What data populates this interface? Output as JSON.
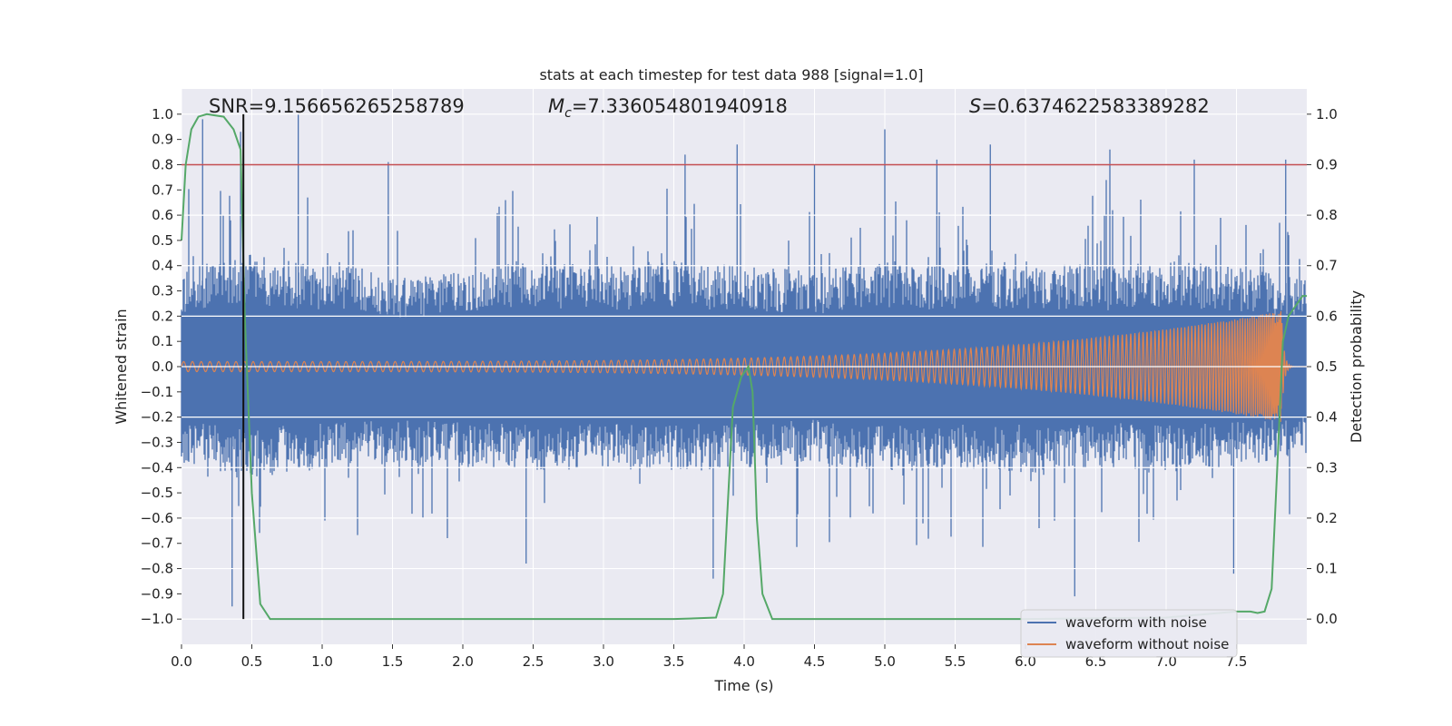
{
  "chart_data": {
    "type": "line",
    "title": "stats at each timestep for test data 988 [signal=1.0]",
    "xlabel": "Time (s)",
    "ylabel": "Whitened strain",
    "y2label": "Detection probability",
    "xlim": [
      0.0,
      8.0
    ],
    "ylim": [
      -1.1,
      1.1
    ],
    "y2lim": [
      -0.05,
      1.05
    ],
    "xticks": [
      "0.0",
      "0.5",
      "1.0",
      "1.5",
      "2.0",
      "2.5",
      "3.0",
      "3.5",
      "4.0",
      "4.5",
      "5.0",
      "5.5",
      "6.0",
      "6.5",
      "7.0",
      "7.5"
    ],
    "yticks": [
      "1.0",
      "0.9",
      "0.8",
      "0.7",
      "0.6",
      "0.5",
      "0.4",
      "0.3",
      "0.2",
      "0.1",
      "0.0",
      "−0.1",
      "−0.2",
      "−0.3",
      "−0.4",
      "−0.5",
      "−0.6",
      "−0.7",
      "−0.8",
      "−0.9",
      "−1.0"
    ],
    "y2ticks": [
      "1.0",
      "0.9",
      "0.8",
      "0.7",
      "0.6",
      "0.5",
      "0.4",
      "0.3",
      "0.2",
      "0.1",
      "0.0"
    ],
    "annotations": {
      "snr": "SNR=9.156656265258789",
      "mc_symbol": "M",
      "mc_sub": "c",
      "mc_value": "=7.336054801940918",
      "s_symbol": "S",
      "s_value": "=0.6374622583389282"
    },
    "threshold": {
      "value": 0.9,
      "axis": "right",
      "color": "#c44e52"
    },
    "marker_time": 0.44,
    "series": [
      {
        "name": "waveform with noise",
        "color": "#4c72b0",
        "axis": "left",
        "envelope_upper": [
          [
            0.0,
            0.38
          ],
          [
            0.4,
            0.45
          ],
          [
            0.8,
            0.42
          ],
          [
            1.2,
            0.4
          ],
          [
            1.6,
            0.35
          ],
          [
            2.0,
            0.38
          ],
          [
            2.5,
            0.42
          ],
          [
            3.0,
            0.4
          ],
          [
            3.5,
            0.42
          ],
          [
            4.0,
            0.4
          ],
          [
            4.5,
            0.38
          ],
          [
            5.0,
            0.42
          ],
          [
            5.5,
            0.4
          ],
          [
            6.0,
            0.42
          ],
          [
            6.5,
            0.4
          ],
          [
            7.0,
            0.42
          ],
          [
            7.5,
            0.4
          ],
          [
            8.0,
            0.35
          ]
        ],
        "envelope_lower": [
          [
            0.0,
            -0.38
          ],
          [
            0.4,
            -0.45
          ],
          [
            0.8,
            -0.42
          ],
          [
            1.2,
            -0.4
          ],
          [
            1.6,
            -0.38
          ],
          [
            2.0,
            -0.4
          ],
          [
            2.5,
            -0.42
          ],
          [
            3.0,
            -0.4
          ],
          [
            3.5,
            -0.42
          ],
          [
            4.0,
            -0.4
          ],
          [
            4.5,
            -0.38
          ],
          [
            5.0,
            -0.42
          ],
          [
            5.5,
            -0.4
          ],
          [
            6.0,
            -0.42
          ],
          [
            6.5,
            -0.4
          ],
          [
            7.0,
            -0.42
          ],
          [
            7.5,
            -0.4
          ],
          [
            8.0,
            -0.35
          ]
        ],
        "peaks": [
          [
            0.15,
            0.98
          ],
          [
            0.36,
            -0.95
          ],
          [
            0.42,
            0.93
          ],
          [
            0.83,
            1.0
          ],
          [
            1.47,
            0.81
          ],
          [
            2.45,
            -0.78
          ],
          [
            3.58,
            0.84
          ],
          [
            3.78,
            -0.84
          ],
          [
            3.95,
            0.88
          ],
          [
            4.5,
            0.8
          ],
          [
            5.0,
            0.94
          ],
          [
            5.37,
            0.82
          ],
          [
            5.75,
            0.88
          ],
          [
            6.35,
            -0.91
          ],
          [
            6.6,
            0.86
          ],
          [
            7.2,
            0.82
          ],
          [
            7.48,
            -0.82
          ],
          [
            7.85,
            0.82
          ]
        ]
      },
      {
        "name": "waveform without noise",
        "color": "#dd8452",
        "axis": "left",
        "chirp": {
          "amplitude_start": 0.02,
          "amplitude_end": 0.22,
          "merger_time": 7.82,
          "cycles": 200
        }
      },
      {
        "name": "detection probability",
        "color": "#55a868",
        "axis": "right",
        "x": [
          0.0,
          0.03,
          0.07,
          0.12,
          0.18,
          0.3,
          0.37,
          0.42,
          0.45,
          0.5,
          0.56,
          0.63,
          1.0,
          2.0,
          3.0,
          3.5,
          3.8,
          3.85,
          3.92,
          3.98,
          4.03,
          4.06,
          4.09,
          4.13,
          4.2,
          4.5,
          5.0,
          6.0,
          7.0,
          7.5,
          7.6,
          7.65,
          7.7,
          7.75,
          7.79,
          7.83,
          7.87,
          7.92,
          7.97,
          8.0
        ],
        "y": [
          0.75,
          0.9,
          0.97,
          0.995,
          1.0,
          0.995,
          0.97,
          0.93,
          0.6,
          0.25,
          0.03,
          0.0,
          0.0,
          0.0,
          0.0,
          0.0,
          0.003,
          0.05,
          0.42,
          0.48,
          0.5,
          0.45,
          0.2,
          0.05,
          0.0,
          0.0,
          0.0,
          0.0,
          0.003,
          0.015,
          0.015,
          0.012,
          0.015,
          0.06,
          0.3,
          0.55,
          0.6,
          0.62,
          0.64,
          0.64
        ]
      }
    ],
    "legend": {
      "placement": "lower-right",
      "entries": [
        {
          "label": "waveform with noise",
          "color": "#4c72b0"
        },
        {
          "label": "waveform without noise",
          "color": "#dd8452"
        }
      ]
    }
  }
}
